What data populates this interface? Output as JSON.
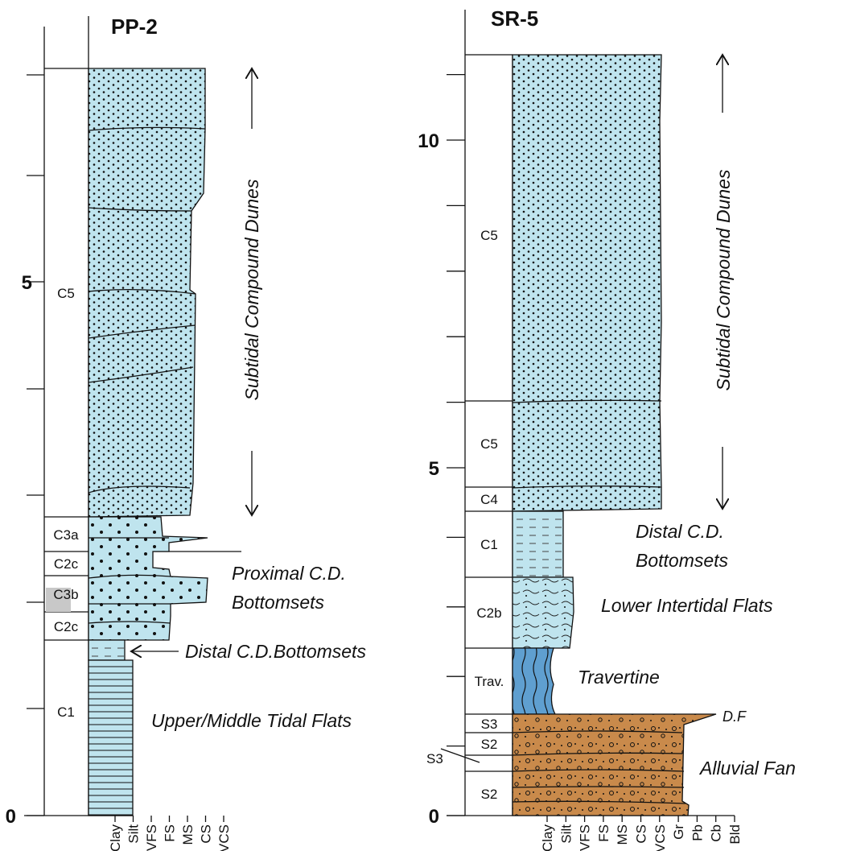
{
  "columns": [
    {
      "title": "PP-2",
      "scale_labels": [
        "0",
        "5"
      ],
      "units": [
        "C5",
        "C3a",
        "C2c",
        "C3b",
        "C2c",
        "C1"
      ],
      "interpretations": [
        [
          "Subtidal Compound Dunes"
        ],
        [
          "Proximal C.D.",
          "Bottomsets"
        ],
        [
          "Distal C.D.Bottomsets"
        ],
        [
          "Upper/Middle Tidal Flats"
        ]
      ],
      "grain_sizes": [
        "Clay",
        "Silt",
        "VFS",
        "FS",
        "MS",
        "CS",
        "VCS"
      ]
    },
    {
      "title": "SR-5",
      "scale_labels": [
        "0",
        "5",
        "10"
      ],
      "units": [
        "C5",
        "C5",
        "C4",
        "C1",
        "C2b",
        "Trav.",
        "S3",
        "S2",
        "S3",
        "S2"
      ],
      "interpretations": [
        [
          "Subtidal Compound Dunes"
        ],
        [
          "Distal C.D.",
          "Bottomsets"
        ],
        [
          "Lower Intertidal Flats"
        ],
        [
          "Travertine"
        ],
        [
          "D.F"
        ],
        [
          "Alluvial Fan"
        ]
      ],
      "grain_sizes": [
        "Clay",
        "Silt",
        "VFS",
        "FS",
        "MS",
        "CS",
        "VCS",
        "Gr",
        "Pb",
        "Cb",
        "Bld"
      ]
    }
  ]
}
